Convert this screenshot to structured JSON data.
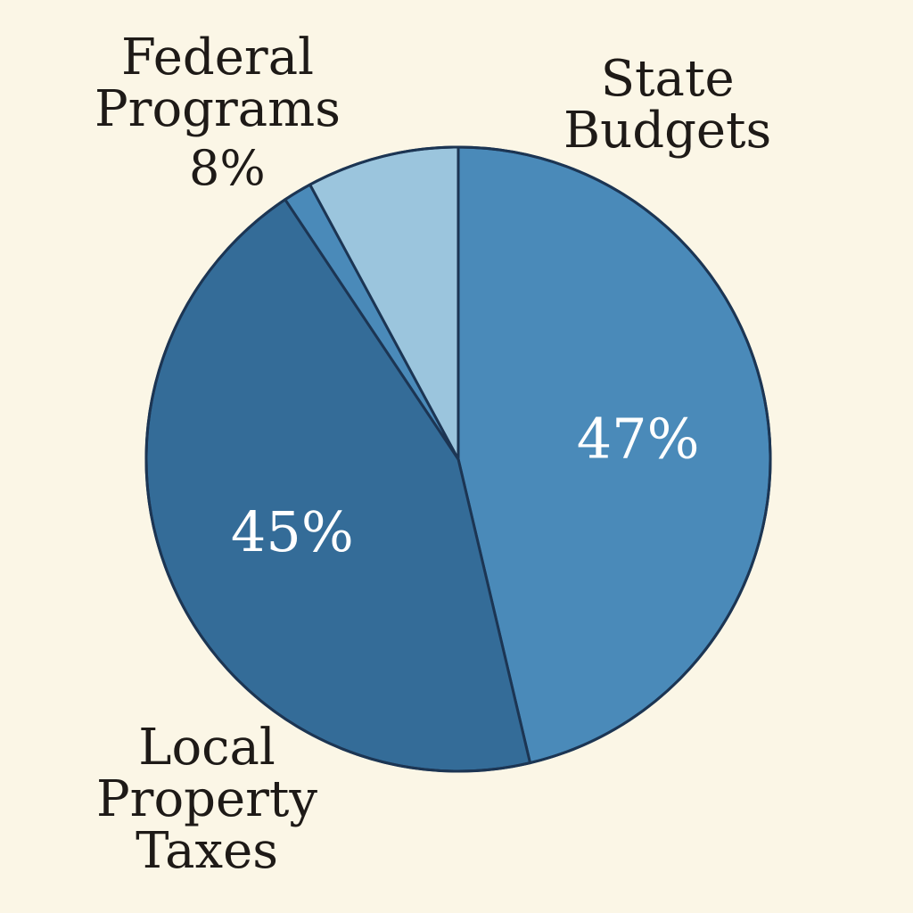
{
  "chart_data": {
    "type": "pie",
    "title": "",
    "slices": [
      {
        "name": "State Budgets",
        "label_lines": [
          "State",
          "Budgets"
        ],
        "value": 47,
        "value_label": "47%",
        "color": "#4a8ab9"
      },
      {
        "name": "Local Property Taxes",
        "label_lines": [
          "Local",
          "Property",
          "Taxes"
        ],
        "value": 45,
        "value_label": "45%",
        "color": "#346c98"
      },
      {
        "name": "",
        "label_lines": [],
        "value": 1.5,
        "value_label": "",
        "color": "#4a8ab9"
      },
      {
        "name": "Federal Programs",
        "label_lines": [
          "Federal",
          "Programs"
        ],
        "value": 8,
        "value_label": "8%",
        "color": "#9bc5dd"
      }
    ],
    "start_angle_deg": 0,
    "direction": "clockwise",
    "outline_color": "#1c3553"
  }
}
